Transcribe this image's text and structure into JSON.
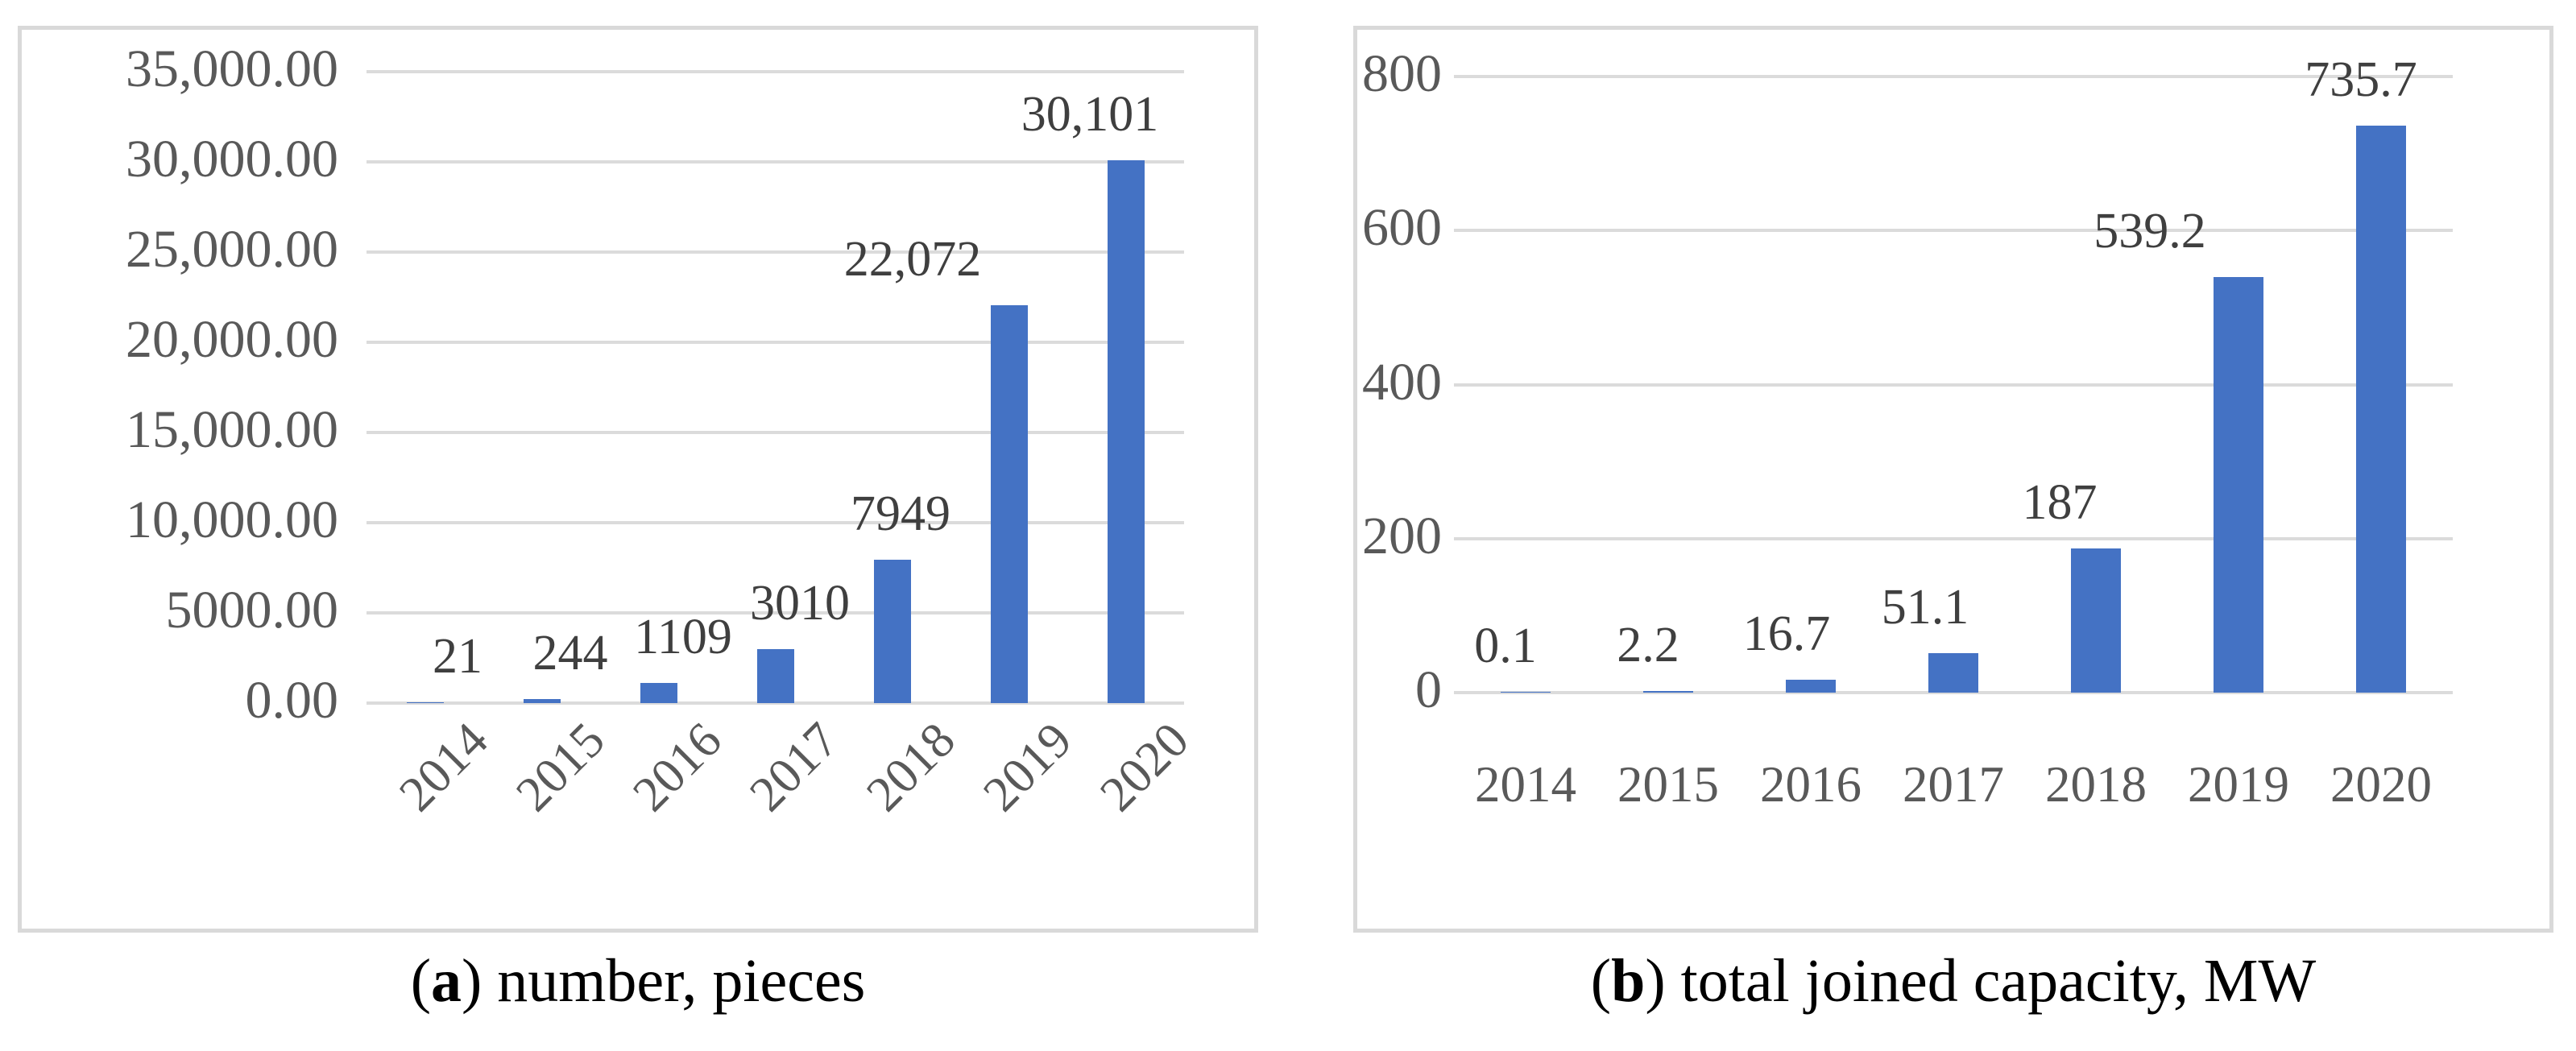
{
  "figure": {
    "panels": [
      {
        "id": "a",
        "caption": {
          "prefix": "(",
          "letter": "a",
          "rest": ") number, pieces"
        }
      },
      {
        "id": "b",
        "caption": {
          "prefix": "(",
          "letter": "b",
          "rest": ") total joined capacity, MW"
        }
      }
    ]
  },
  "colors": {
    "bar": "#4472C4",
    "gridline": "#DBDBDB",
    "panel_border": "#D9D9D9",
    "axis_text": "#595959",
    "data_label_text": "#3F3F3F",
    "caption_text": "#000000"
  },
  "chart_data": [
    {
      "type": "bar",
      "title": "(a) number, pieces",
      "categories": [
        "2014",
        "2015",
        "2016",
        "2017",
        "2018",
        "2019",
        "2020"
      ],
      "values": [
        21,
        244,
        1109,
        3010,
        7949,
        22072,
        30101
      ],
      "data_labels": [
        "21",
        "244",
        "1109",
        "3010",
        "7949",
        "22,072",
        "30,101"
      ],
      "xlabel": "",
      "ylabel": "",
      "ylim": [
        0,
        35000
      ],
      "ytick_interval": 5000,
      "ytick_labels": [
        "35,000.00",
        "30,000.00",
        "25,000.00",
        "20,000.00",
        "15,000.00",
        "10,000.00",
        "5000.00",
        "0.00"
      ],
      "grid": true,
      "legend": false,
      "x_tick_rotation": -45
    },
    {
      "type": "bar",
      "title": "(b) total joined capacity, MW",
      "categories": [
        "2014",
        "2015",
        "2016",
        "2017",
        "2018",
        "2019",
        "2020"
      ],
      "values": [
        0.1,
        2.2,
        16.7,
        51.1,
        187,
        539.2,
        735.7
      ],
      "data_labels": [
        "0.1",
        "2.2",
        "16.7",
        "51.1",
        "187",
        "539.2",
        "735.7"
      ],
      "xlabel": "",
      "ylabel": "",
      "ylim": [
        0,
        800
      ],
      "ytick_interval": 200,
      "ytick_labels": [
        "800",
        "600",
        "400",
        "200",
        "0"
      ],
      "grid": true,
      "legend": false,
      "x_tick_rotation": 0
    }
  ]
}
